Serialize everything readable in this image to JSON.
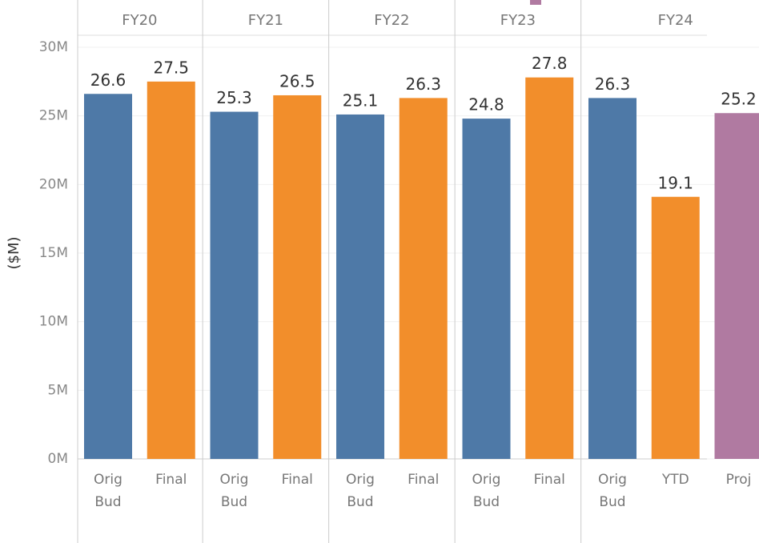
{
  "chart_data": {
    "type": "grouped_bar",
    "y_label": "($M)",
    "ylim": [
      0,
      30
    ],
    "yticks": [
      {
        "value": 0,
        "label": "0M"
      },
      {
        "value": 5,
        "label": "5M"
      },
      {
        "value": 10,
        "label": "10M"
      },
      {
        "value": 15,
        "label": "15M"
      },
      {
        "value": 20,
        "label": "20M"
      },
      {
        "value": 25,
        "label": "25M"
      },
      {
        "value": 30,
        "label": "30M"
      }
    ],
    "grid": true,
    "groups": [
      {
        "name": "FY20",
        "categories": [
          "Orig Bud",
          "Final"
        ],
        "values": [
          26.6,
          27.5
        ],
        "colors": [
          "#4e79a7",
          "#f28e2b"
        ]
      },
      {
        "name": "FY21",
        "categories": [
          "Orig Bud",
          "Final"
        ],
        "values": [
          25.3,
          26.5
        ],
        "colors": [
          "#4e79a7",
          "#f28e2b"
        ]
      },
      {
        "name": "FY22",
        "categories": [
          "Orig Bud",
          "Final"
        ],
        "values": [
          25.1,
          26.3
        ],
        "colors": [
          "#4e79a7",
          "#f28e2b"
        ]
      },
      {
        "name": "FY23",
        "categories": [
          "Orig Bud",
          "Final"
        ],
        "values": [
          24.8,
          27.8
        ],
        "colors": [
          "#4e79a7",
          "#f28e2b"
        ]
      },
      {
        "name": "FY24",
        "categories": [
          "Orig Bud",
          "YTD",
          "Proj"
        ],
        "values": [
          26.3,
          19.1,
          25.2
        ],
        "colors": [
          "#4e79a7",
          "#f28e2b",
          "#b07aa1"
        ]
      }
    ]
  }
}
